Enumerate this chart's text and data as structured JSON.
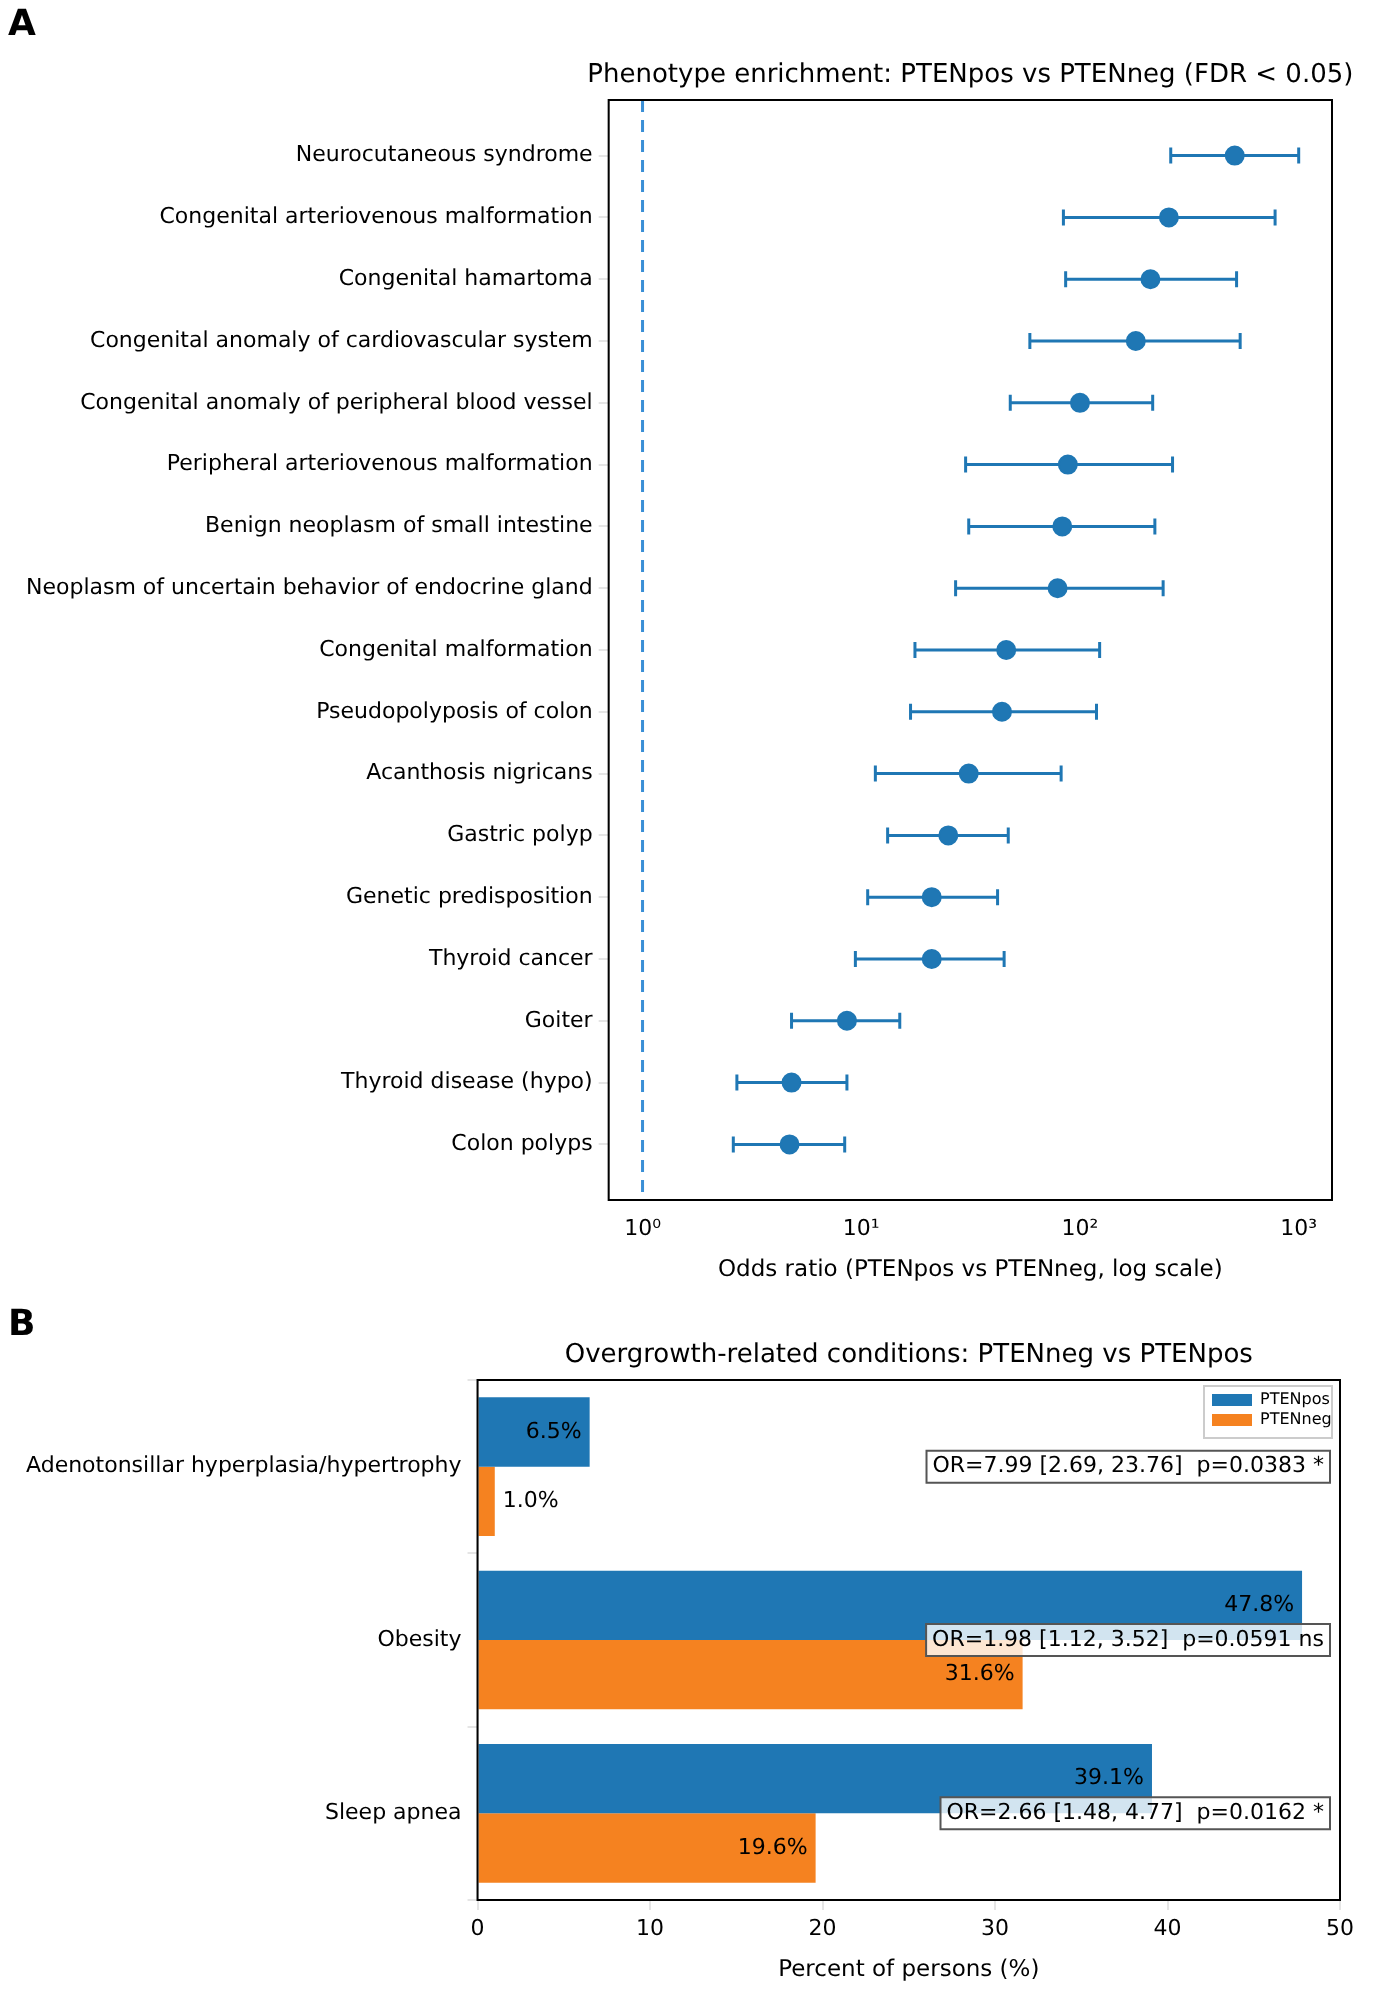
{
  "chart_data": [
    {
      "type": "scatter",
      "orientation": "horizontal",
      "title": "Phenotype enrichment: PTENpos vs PTENneg (FDR < 0.05)",
      "xlabel": "Odds ratio (PTENpos vs PTENneg, log scale)",
      "categories": [
        "Neurocutaneous syndrome",
        "Congenital arteriovenous malformation",
        "Congenital hamartoma",
        "Congenital anomaly of cardiovascular system",
        "Congenital anomaly of peripheral blood vessel",
        "Peripheral arteriovenous malformation",
        "Benign neoplasm of small intestine",
        "Neoplasm of uncertain behavior of endocrine gland",
        "Congenital malformation",
        "Pseudopolyposis of colon",
        "Acanthosis nigricans",
        "Gastric polyp",
        "Genetic predisposition",
        "Thyroid cancer",
        "Goiter",
        "Thyroid disease (hypo)",
        "Colon polyps"
      ],
      "values": [
        510,
        255,
        210,
        180,
        100,
        88,
        83,
        79,
        46,
        44,
        31,
        25,
        21,
        21,
        8.6,
        4.8,
        4.7
      ],
      "errors": [
        [
          260,
          1000
        ],
        [
          84,
          780
        ],
        [
          86,
          520
        ],
        [
          59,
          540
        ],
        [
          48,
          215
        ],
        [
          30,
          265
        ],
        [
          31,
          220
        ],
        [
          27,
          240
        ],
        [
          17.6,
          123
        ],
        [
          16.8,
          119
        ],
        [
          11.6,
          82
        ],
        [
          13.2,
          47
        ],
        [
          10.7,
          42
        ],
        [
          9.4,
          45
        ],
        [
          4.8,
          15
        ],
        [
          2.7,
          8.6
        ],
        [
          2.6,
          8.4
        ]
      ],
      "color": "#1f77b4",
      "marker": "circle",
      "log": "x",
      "grid": false,
      "xlim": [
        0.72,
        1420
      ],
      "xticks": [
        {
          "value": 1,
          "label": "10⁰"
        },
        {
          "value": 10,
          "label": "10¹"
        },
        {
          "value": 100,
          "label": "10²"
        },
        {
          "value": 1000,
          "label": "10³"
        }
      ],
      "ref_lines": [
        {
          "axis": "x",
          "value": 1,
          "color": "#3a8fd6",
          "line_style": "dashed"
        }
      ],
      "annotations": [
        "A"
      ]
    },
    {
      "type": "bar",
      "orientation": "horizontal",
      "title": "Overgrowth-related conditions: PTENneg vs PTENpos",
      "xlabel": "Percent of persons (%)",
      "categories": [
        "Adenotonsillar hyperplasia/hypertrophy",
        "Obesity",
        "Sleep apnea"
      ],
      "series": [
        {
          "name": "PTENpos",
          "color": "#1f77b4",
          "values": [
            6.5,
            47.8,
            39.1
          ],
          "value_labels": [
            "6.5%",
            "47.8%",
            "39.1%"
          ]
        },
        {
          "name": "PTENneg",
          "color": "#f58220",
          "values": [
            1.0,
            31.6,
            19.6
          ],
          "value_labels": [
            "1.0%",
            "31.6%",
            "19.6%"
          ]
        }
      ],
      "xlim": [
        0,
        50
      ],
      "xticks": [
        0,
        10,
        20,
        30,
        40,
        50
      ],
      "grid": false,
      "legend": "top right",
      "annotations": [
        "B",
        "OR=7.99 [2.69, 23.76]  p=0.0383 *",
        "OR=1.98 [1.12, 3.52]  p=0.0591 ns",
        "OR=2.66 [1.48, 4.77]  p=0.0162 *"
      ]
    }
  ]
}
